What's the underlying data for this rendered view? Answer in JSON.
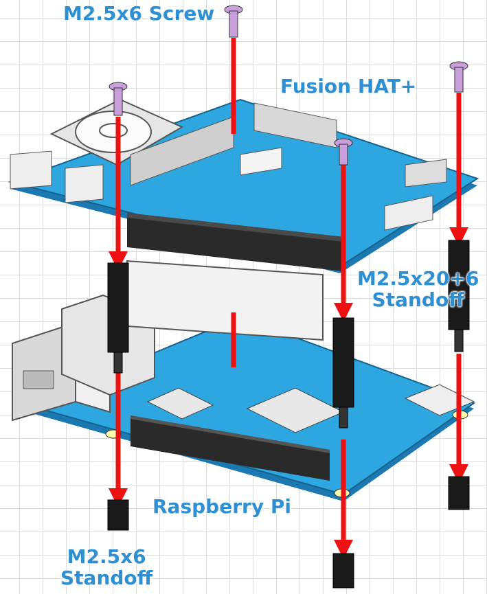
{
  "labels": {
    "screw": "M2.5x6 Screw",
    "fusion_hat": "Fusion HAT+",
    "long_standoff_line1": "M2.5x20+6",
    "long_standoff_line2": "Standoff",
    "raspberry_pi": "Raspberry Pi",
    "short_standoff_line1": "M2.5x6",
    "short_standoff_line2": "Standoff"
  },
  "colors": {
    "board": "#2ea6e0",
    "board_edge": "#1b78b0",
    "arrow": "#ee1111",
    "label": "#2f8fd3",
    "screw": "#c9a0dc",
    "standoff": "#1a1a1a",
    "grid": "#dcdcdc"
  }
}
